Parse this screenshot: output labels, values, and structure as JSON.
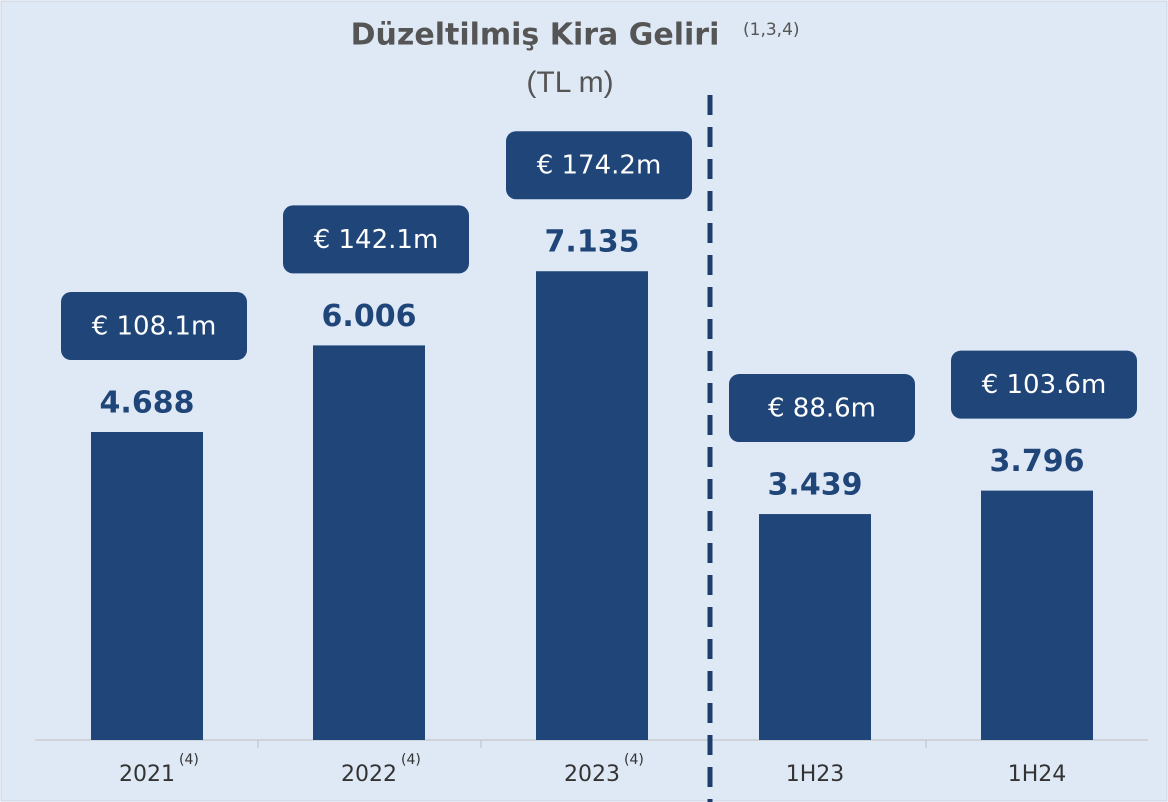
{
  "chart_data": {
    "type": "bar",
    "title": "Düzeltilmiş Kira Geliri",
    "title_note": "(1,3,4)",
    "subtitle": "(TL m)",
    "categories": [
      "2021",
      "2022",
      "2023",
      "1H23",
      "1H24"
    ],
    "category_notes": [
      "(4)",
      "(4)",
      "(4)",
      null,
      null
    ],
    "values": [
      4688,
      6006,
      7135,
      3439,
      3796
    ],
    "value_labels": [
      "4.688",
      "6.006",
      "7.135",
      "3.439",
      "3.796"
    ],
    "annotations": [
      "€ 108.1m",
      "€ 142.1m",
      "€ 174.2m",
      "€ 88.6m",
      "€ 103.6m"
    ],
    "color": "#1f4579"
  }
}
